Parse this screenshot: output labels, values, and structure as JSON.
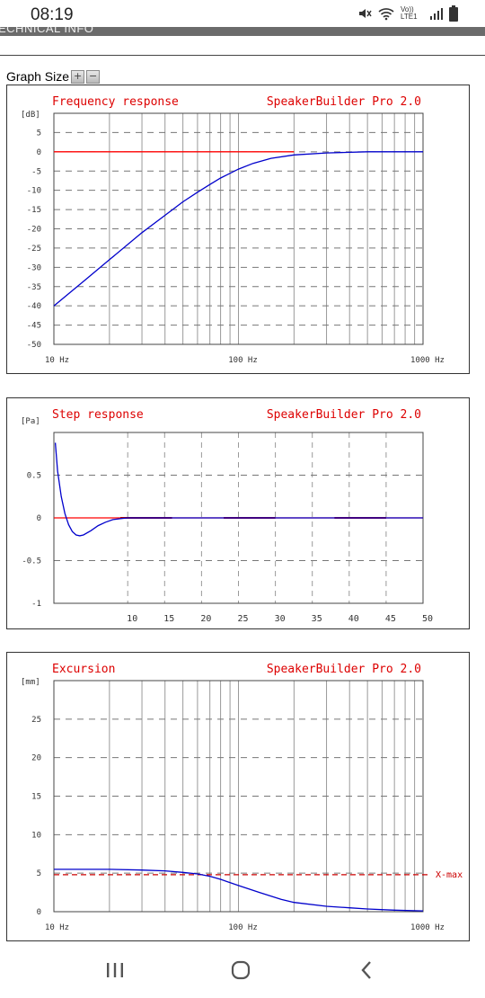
{
  "status_bar": {
    "time": "08:19",
    "icons": [
      "mute-icon",
      "wifi-icon",
      "volte-icon",
      "signal-icon",
      "battery-icon"
    ],
    "volte_text": "Vo)) LTE1"
  },
  "section_header": {
    "label": "ECHNICAL INFO"
  },
  "graph_size": {
    "label": "Graph Size",
    "plus": "+",
    "minus": "−"
  },
  "chart_data": [
    {
      "type": "line",
      "title": "Frequency response",
      "brand": "SpeakerBuilder Pro 2.0",
      "ylabel": "[dB]",
      "xscale": "log",
      "xlim": [
        10,
        1000
      ],
      "ylim": [
        -50,
        10
      ],
      "yticks": [
        5,
        0,
        -5,
        -10,
        -15,
        -20,
        -25,
        -30,
        -35,
        -40,
        -45,
        -50
      ],
      "xtick_labels": [
        {
          "x": 10,
          "label": "10 Hz"
        },
        {
          "x": 100,
          "label": "100 Hz"
        },
        {
          "x": 1000,
          "label": "1000 Hz"
        }
      ],
      "reference": {
        "y": 0,
        "x_to": 200,
        "color": "#ff0000"
      },
      "series": [
        {
          "color": "#0000cc",
          "x": [
            10,
            15,
            20,
            30,
            40,
            50,
            60,
            70,
            80,
            100,
            120,
            150,
            200,
            300,
            500,
            1000
          ],
          "y": [
            -40,
            -33,
            -28,
            -21,
            -16.5,
            -13,
            -10.5,
            -8.5,
            -6.8,
            -4.5,
            -3,
            -1.7,
            -0.8,
            -0.3,
            0,
            0
          ]
        }
      ],
      "grid": true
    },
    {
      "type": "line",
      "title": "Step response",
      "brand": "SpeakerBuilder Pro 2.0",
      "ylabel": "[Pa]",
      "xlim": [
        0,
        50
      ],
      "ylim": [
        -1,
        1
      ],
      "yticks": [
        0.5,
        0,
        -0.5,
        -1
      ],
      "ytick_labels": [
        "0.5",
        "0",
        "-0.5",
        "-1"
      ],
      "xticks": [
        10,
        15,
        20,
        25,
        30,
        35,
        40,
        45,
        50
      ],
      "reference": {
        "y": 0,
        "color": "#ff0000"
      },
      "highlights": [
        [
          9,
          16
        ],
        [
          23,
          30
        ],
        [
          38,
          45
        ]
      ],
      "series": [
        {
          "color": "#0000cc",
          "x": [
            0.2,
            0.5,
            1,
            1.5,
            2,
            2.5,
            3,
            3.5,
            4,
            5,
            6,
            7,
            8,
            9,
            10,
            12,
            15,
            20,
            30,
            40,
            50
          ],
          "y": [
            0.88,
            0.55,
            0.25,
            0.05,
            -0.08,
            -0.16,
            -0.2,
            -0.21,
            -0.2,
            -0.15,
            -0.09,
            -0.05,
            -0.02,
            -0.01,
            0,
            0,
            0,
            0,
            0,
            0,
            0
          ]
        }
      ],
      "grid": true
    },
    {
      "type": "line",
      "title": "Excursion",
      "brand": "SpeakerBuilder Pro 2.0",
      "ylabel": "[mm]",
      "xscale": "log",
      "xlim": [
        10,
        1000
      ],
      "ylim": [
        0,
        30
      ],
      "yticks": [
        25,
        20,
        15,
        10,
        5,
        0
      ],
      "xtick_labels": [
        {
          "x": 10,
          "label": "10 Hz"
        },
        {
          "x": 100,
          "label": "100 Hz"
        },
        {
          "x": 1000,
          "label": "1000 Hz"
        }
      ],
      "xmax": {
        "y": 4.8,
        "label": "X-max",
        "color": "#cc0000"
      },
      "series": [
        {
          "color": "#0000cc",
          "x": [
            10,
            20,
            30,
            40,
            50,
            60,
            70,
            80,
            100,
            130,
            170,
            200,
            300,
            400,
            500,
            700,
            1000
          ],
          "y": [
            5.5,
            5.5,
            5.4,
            5.3,
            5.1,
            4.9,
            4.6,
            4.2,
            3.4,
            2.5,
            1.6,
            1.2,
            0.7,
            0.5,
            0.35,
            0.2,
            0.1
          ]
        }
      ],
      "grid": true
    }
  ],
  "nav_bar": {
    "buttons": [
      "recents-icon",
      "home-icon",
      "back-icon"
    ]
  }
}
